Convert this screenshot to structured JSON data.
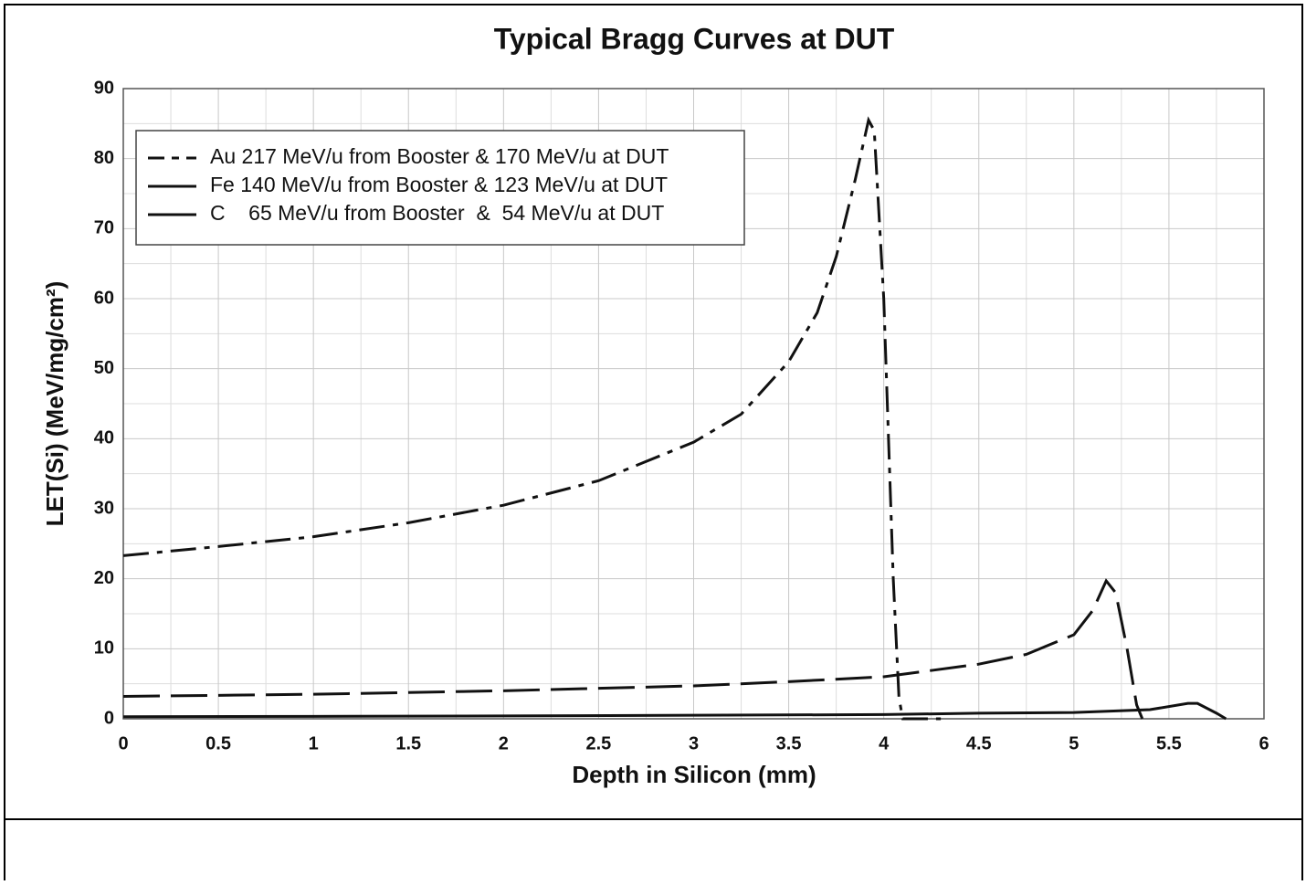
{
  "chart_data": {
    "type": "line",
    "title": "Typical Bragg Curves at DUT",
    "x_label": "Depth in Silicon (mm)",
    "y_label": "LET(Si) (MeV/mg/cm²)",
    "xlim": [
      0,
      6
    ],
    "ylim": [
      0,
      90
    ],
    "xticks": [
      0,
      0.5,
      1,
      1.5,
      2,
      2.5,
      3,
      3.5,
      4,
      4.5,
      5,
      5.5,
      6
    ],
    "yticks": [
      0,
      10,
      20,
      30,
      40,
      50,
      60,
      70,
      80,
      90
    ],
    "grid": true,
    "minor_grid": true,
    "legend": "upper left",
    "series": [
      {
        "name": "Au 217 MeV/u from Booster & 170 MeV/u at DUT",
        "color": "#111111",
        "dash": "dash-dot",
        "x": [
          0,
          0.5,
          1,
          1.5,
          2,
          2.5,
          3,
          3.25,
          3.5,
          3.65,
          3.75,
          3.85,
          3.92,
          3.95,
          4.0,
          4.05,
          4.08,
          4.1,
          4.3
        ],
        "values": [
          23.3,
          24.6,
          26,
          28,
          30.5,
          34,
          39.5,
          43.5,
          51,
          58,
          66,
          77,
          85.5,
          84,
          60,
          20,
          3,
          0,
          0
        ]
      },
      {
        "name": "Fe 140 MeV/u from Booster & 123 MeV/u at DUT",
        "color": "#111111",
        "dash": "dashed",
        "x": [
          0,
          1,
          2,
          3,
          3.5,
          4,
          4.5,
          4.75,
          5,
          5.1,
          5.17,
          5.22,
          5.28,
          5.33,
          5.36
        ],
        "values": [
          3.2,
          3.5,
          4,
          4.7,
          5.3,
          6,
          7.8,
          9.2,
          12,
          15.5,
          19.7,
          18,
          10,
          2,
          0
        ]
      },
      {
        "name": "C    65 MeV/u from Booster  &  54 MeV/u at DUT",
        "color": "#111111",
        "dash": "solid",
        "x": [
          0,
          1,
          2,
          3,
          4,
          4.5,
          5,
          5.4,
          5.6,
          5.65,
          5.75,
          5.8
        ],
        "values": [
          0.3,
          0.35,
          0.4,
          0.5,
          0.6,
          0.8,
          0.9,
          1.3,
          2.2,
          2.2,
          0.8,
          0
        ]
      }
    ]
  }
}
